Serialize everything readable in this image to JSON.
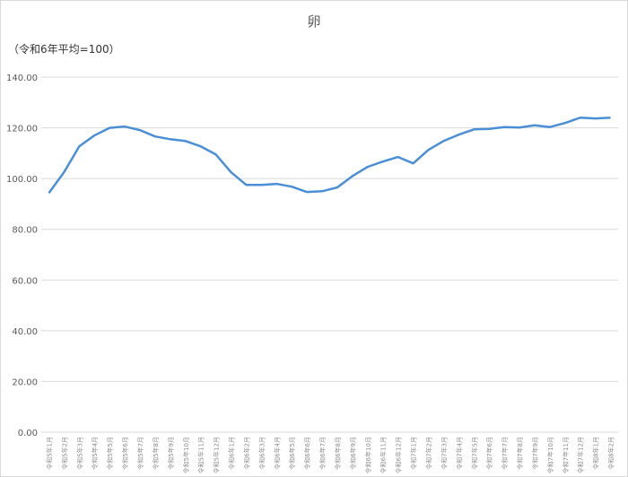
{
  "chart_data": {
    "type": "line",
    "title": "卵",
    "ylabel": "（令和6年平均=100）",
    "xlabel": "",
    "ylim": [
      0,
      140
    ],
    "yticks": [
      "0.00",
      "20.00",
      "40.00",
      "60.00",
      "80.00",
      "100.00",
      "120.00",
      "140.00"
    ],
    "grid": true,
    "legend": "none",
    "line_color": "#4a8fd6",
    "categories": [
      "令和5年1月",
      "令和5年2月",
      "令和5年3月",
      "令和5年4月",
      "令和5年5月",
      "令和5年6月",
      "令和5年7月",
      "令和5年8月",
      "令和5年9月",
      "令和5年10月",
      "令和5年11月",
      "令和5年12月",
      "令和6年1月",
      "令和6年2月",
      "令和6年3月",
      "令和6年4月",
      "令和6年5月",
      "令和6年6月",
      "令和6年7月",
      "令和6年8月",
      "令和6年9月",
      "令和6年10月",
      "令和6年11月",
      "令和6年12月",
      "令和7年1月",
      "令和7年2月",
      "令和7年3月",
      "令和7年4月",
      "令和7年5月",
      "令和7年6月",
      "令和7年7月",
      "令和7年8月",
      "令和7年9月",
      "令和7年10月",
      "令和7年11月",
      "令和7年12月",
      "令和8年1月",
      "令和8年2月"
    ],
    "values": [
      94.3,
      102.5,
      112.7,
      117.0,
      120.0,
      120.5,
      119.1,
      116.6,
      115.5,
      114.8,
      112.7,
      109.5,
      102.5,
      97.5,
      97.5,
      97.9,
      96.8,
      94.7,
      95.0,
      96.5,
      101.0,
      104.6,
      106.7,
      108.5,
      106.0,
      111.3,
      114.8,
      117.3,
      119.4,
      119.6,
      120.3,
      120.1,
      121.0,
      120.3,
      121.9,
      124.0,
      123.7,
      124.0
    ]
  }
}
